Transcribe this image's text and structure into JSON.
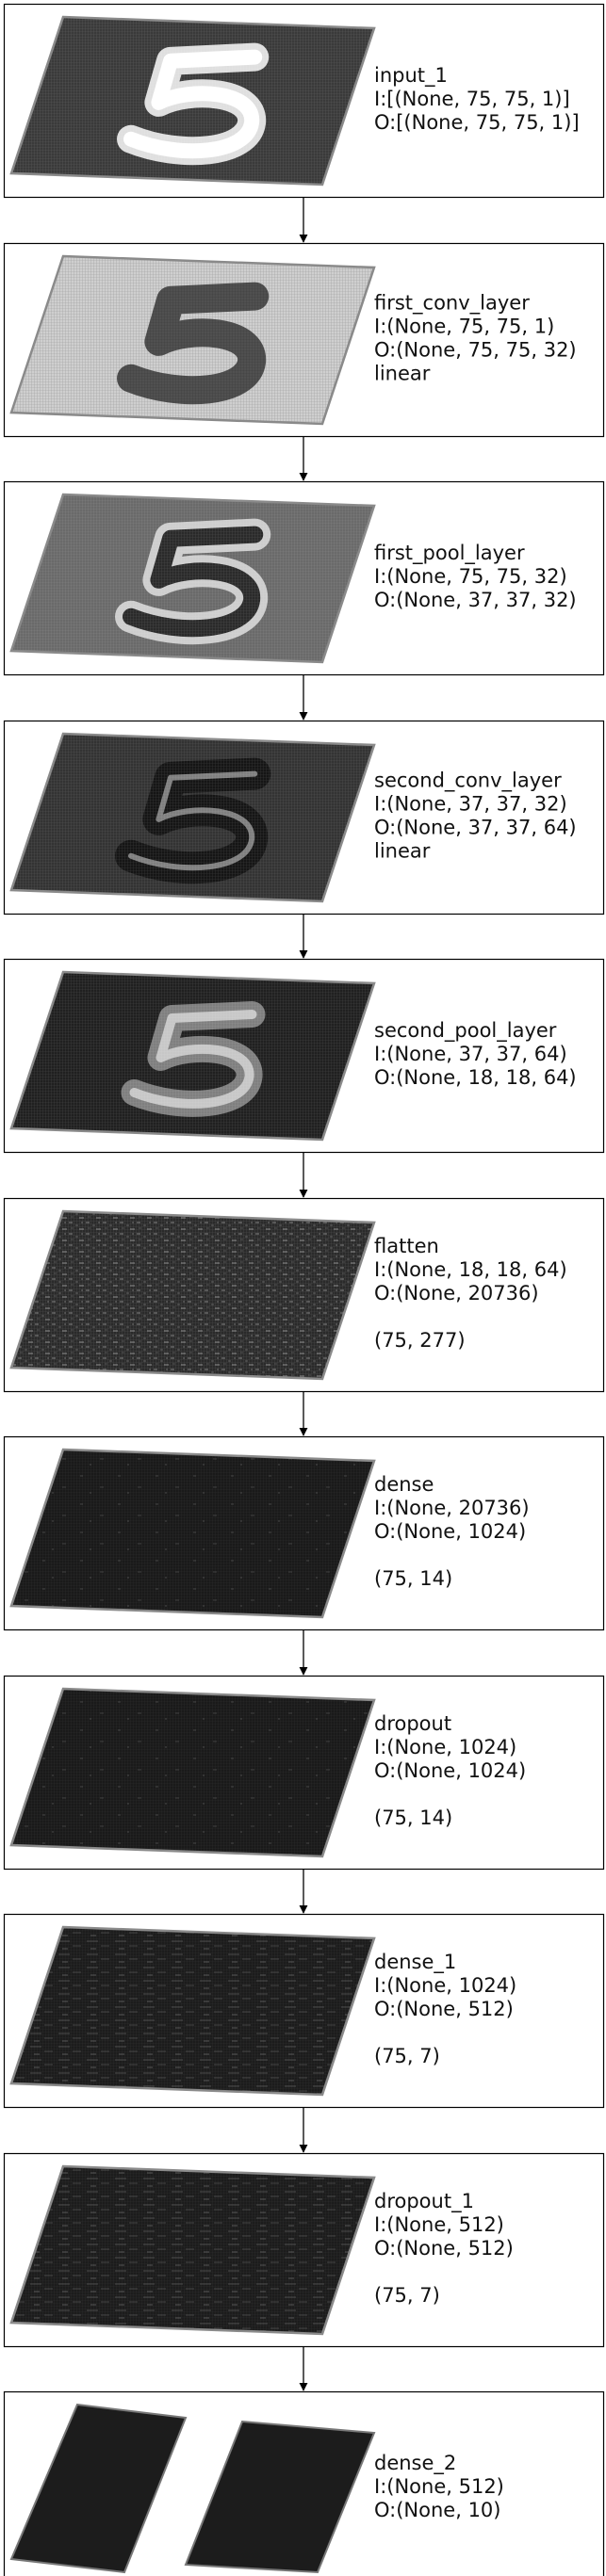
{
  "layers": [
    {
      "name": "input_1",
      "lines": [
        "input_1",
        "I:[(None, 75, 75, 1)]",
        "O:[(None, 75, 75, 1)]"
      ],
      "viz": "digit-light"
    },
    {
      "name": "first_conv_layer",
      "lines": [
        "first_conv_layer",
        "I:(None, 75, 75, 1)",
        "O:(None, 75, 75, 32)",
        "linear"
      ],
      "viz": "digit-inverted"
    },
    {
      "name": "first_pool_layer",
      "lines": [
        "first_pool_layer",
        "I:(None, 75, 75, 32)",
        "O:(None, 37, 37, 32)"
      ],
      "viz": "digit-outline"
    },
    {
      "name": "second_conv_layer",
      "lines": [
        "second_conv_layer",
        "I:(None, 37, 37, 32)",
        "O:(None, 37, 37, 64)",
        "linear"
      ],
      "viz": "digit-dark"
    },
    {
      "name": "second_pool_layer",
      "lines": [
        "second_pool_layer",
        "I:(None, 37, 37, 64)",
        "O:(None, 18, 18, 64)"
      ],
      "viz": "digit-blocky"
    },
    {
      "name": "flatten",
      "lines": [
        "flatten",
        "I:(None, 18, 18, 64)",
        "O:(None, 20736)",
        "",
        "(75, 277)"
      ],
      "viz": "noise"
    },
    {
      "name": "dense",
      "lines": [
        "dense",
        "I:(None, 20736)",
        "O:(None, 1024)",
        "",
        "(75, 14)"
      ],
      "viz": "dark-specks"
    },
    {
      "name": "dropout",
      "lines": [
        "dropout",
        "I:(None, 1024)",
        "O:(None, 1024)",
        "",
        "(75, 14)"
      ],
      "viz": "dark-specks"
    },
    {
      "name": "dense_1",
      "lines": [
        "dense_1",
        "I:(None, 1024)",
        "O:(None, 512)",
        "",
        "(75, 7)"
      ],
      "viz": "dark-stripes"
    },
    {
      "name": "dropout_1",
      "lines": [
        "dropout_1",
        "I:(None, 512)",
        "O:(None, 512)",
        "",
        "(75, 7)"
      ],
      "viz": "dark-stripes"
    },
    {
      "name": "dense_2",
      "lines": [
        "dense_2",
        "I:(None, 512)",
        "O:(None, 10)"
      ],
      "viz": "two-panels"
    }
  ],
  "colors": {
    "border": "#000000",
    "arrow": "#000000",
    "text": "#111111"
  }
}
